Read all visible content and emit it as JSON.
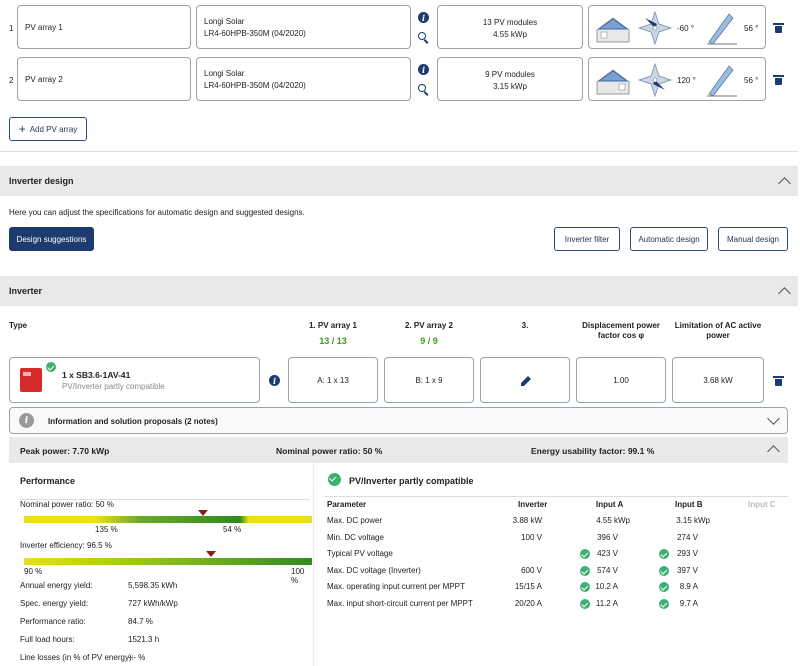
{
  "arrays": [
    {
      "num": "1",
      "name": "PV array 1",
      "module_brand": "Longi Solar",
      "module_model": "LR4-60HPB-350M (04/2020)",
      "modules": "13 PV modules",
      "power": "4.55 kWp",
      "azimuth": "-60 °",
      "tilt": "56 °"
    },
    {
      "num": "2",
      "name": "PV array 2",
      "module_brand": "Longi Solar",
      "module_model": "LR4-60HPB-350M (04/2020)",
      "modules": "9 PV modules",
      "power": "3.15 kWp",
      "azimuth": "120 °",
      "tilt": "56 °"
    }
  ],
  "add_array_label": "Add PV array",
  "inverter_design": {
    "title": "Inverter design",
    "description": "Here you can adjust the specifications for automatic design and suggested designs.",
    "design_suggestions": "Design suggestions",
    "inverter_filter": "Inverter filter",
    "automatic_design": "Automatic design",
    "manual_design": "Manual design"
  },
  "inverter": {
    "title": "Inverter",
    "col_type": "Type",
    "col_array1": "1. PV array 1",
    "col_array1_val": "13 / 13",
    "col_array2": "2. PV array 2",
    "col_array2_val": "9 / 9",
    "col_3": "3.",
    "col_cos": "Displacement power factor cos φ",
    "col_limit": "Limitation of AC active power",
    "device_name": "1 x SB3.6-1AV-41",
    "device_status": "PV/Inverter partly compatible",
    "cell_a": "A: 1 x 13",
    "cell_b": "B: 1 x 9",
    "cell_cos": "1.00",
    "cell_limit": "3.68 kW",
    "notes": "Information and solution proposals (2 notes)"
  },
  "summary": {
    "peak_power": "Peak power: 7.70 kWp",
    "nominal_ratio": "Nominal power ratio: 50 %",
    "energy_factor": "Energy usability factor: 99.1 %"
  },
  "performance": {
    "title": "Performance",
    "npr_label": "Nominal power ratio: 50 %",
    "npr_low": "135 %",
    "npr_mid": "54 %",
    "npr_level": 0.62,
    "eff_label": "Inverter efficiency: 96.5 %",
    "eff_low": "90 %",
    "eff_high": "100 %",
    "eff_level": 0.65,
    "rows": [
      {
        "label": "Annual energy yield:",
        "value": "5,598.35 kWh"
      },
      {
        "label": "Spec. energy yield:",
        "value": "727 kWh/kWp"
      },
      {
        "label": "Performance ratio:",
        "value": "84.7 %"
      },
      {
        "label": "Full load hours:",
        "value": "1521.3 h"
      },
      {
        "label": "Line losses (in % of PV energy):",
        "value": "--- %"
      }
    ]
  },
  "compat": {
    "title": "PV/Inverter partly compatible",
    "headers": {
      "param": "Parameter",
      "inverter": "Inverter",
      "a": "Input A",
      "b": "Input B",
      "c": "Input C"
    },
    "rows": [
      {
        "param": "Max. DC power",
        "inv": "3.88 kW",
        "a": "4.55 kWp",
        "b": "3.15 kWp",
        "ok": false
      },
      {
        "param": "Min. DC voltage",
        "inv": "100 V",
        "a": "396 V",
        "b": "274 V",
        "ok": false
      },
      {
        "param": "Typical PV voltage",
        "inv": "",
        "a": "423 V",
        "b": "293 V",
        "ok": true
      },
      {
        "param": "Max. DC voltage (Inverter)",
        "inv": "600 V",
        "a": "574 V",
        "b": "397 V",
        "ok": true
      },
      {
        "param": "Max. operating input current per MPPT",
        "inv": "15/15 A",
        "a": "10.2 A",
        "b": "8.9 A",
        "ok": true
      },
      {
        "param": "Max. input short-circuit current per MPPT",
        "inv": "20/20 A",
        "a": "11.2 A",
        "b": "9.7 A",
        "ok": true
      }
    ]
  }
}
